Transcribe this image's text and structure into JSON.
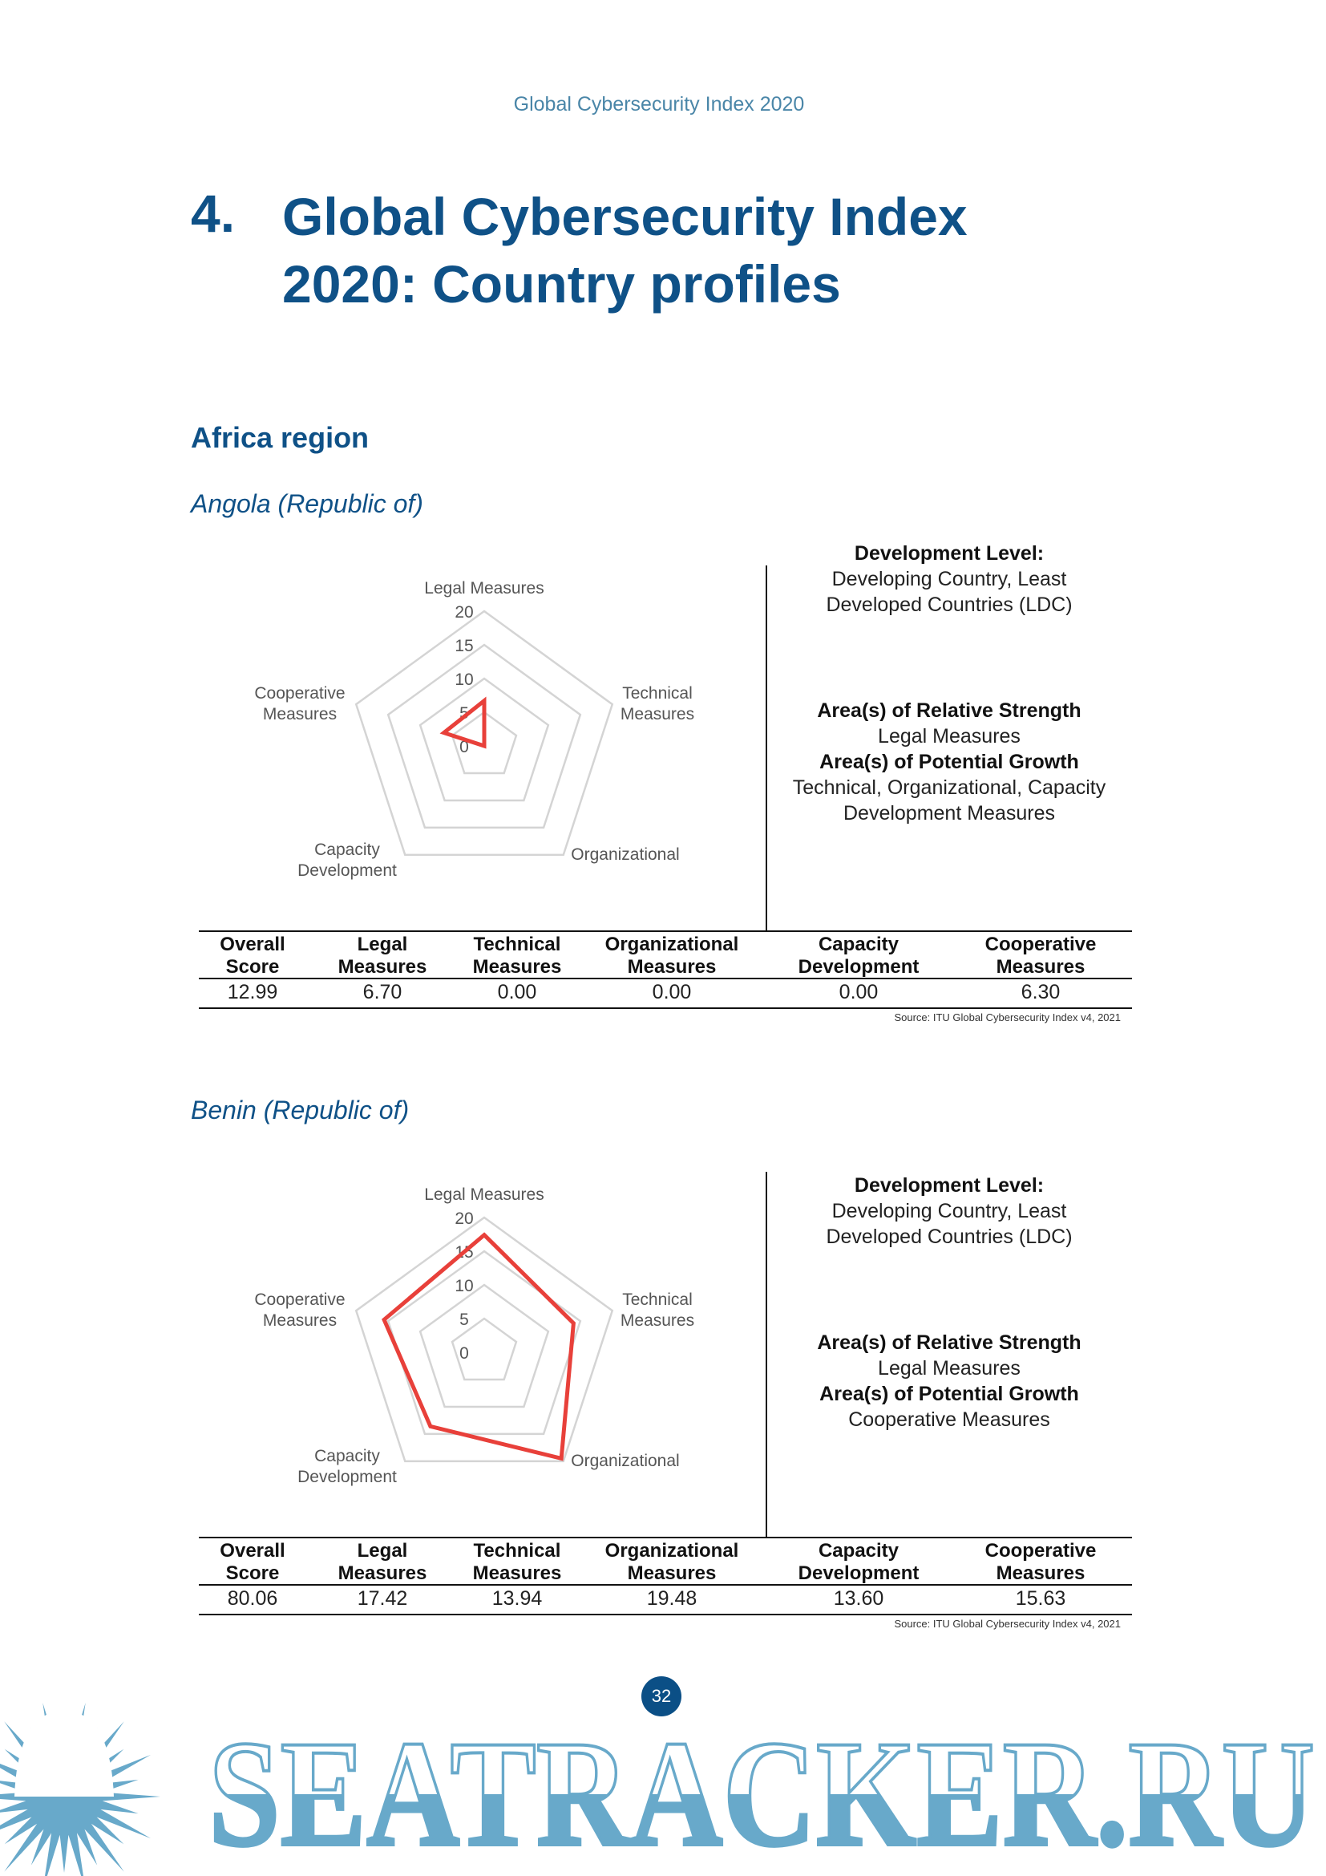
{
  "running_header": "Global Cybersecurity Index 2020",
  "chapter": {
    "number": "4.",
    "title_line1": "Global Cybersecurity Index",
    "title_line2": "2020: Country profiles"
  },
  "region": "Africa region",
  "colors": {
    "title_blue": "#0f5187",
    "series_red": "#e8403a",
    "grid_gray": "#d4d4d4",
    "watermark_blue": "#68a9ca"
  },
  "profiles": [
    {
      "country": "Angola (Republic of)",
      "chart": {
        "type": "radar",
        "axes": [
          "Legal Measures",
          "Technical|Measures",
          "Organizational",
          "Capacity|Development",
          "Cooperative|Measures"
        ],
        "ticks": [
          "0",
          "5",
          "10",
          "15",
          "20"
        ],
        "range": [
          0,
          20
        ],
        "values": [
          6.7,
          0.0,
          0.0,
          0.0,
          6.3
        ]
      },
      "panel": {
        "dev_label": "Development Level:",
        "dev_value_1": "Developing Country, Least",
        "dev_value_2": "Developed Countries (LDC)",
        "strength_label": "Area(s) of Relative Strength",
        "strength_value": "Legal Measures",
        "growth_label": "Area(s) of Potential Growth",
        "growth_value_1": "Technical, Organizational, Capacity",
        "growth_value_2": "Development Measures"
      },
      "table": {
        "headers": [
          [
            "Overall",
            "Score"
          ],
          [
            "Legal",
            "Measures"
          ],
          [
            "Technical",
            "Measures"
          ],
          [
            "Organizational",
            "Measures"
          ],
          [
            "Capacity",
            "Development"
          ],
          [
            "Cooperative",
            "Measures"
          ]
        ],
        "values": [
          "12.99",
          "6.70",
          "0.00",
          "0.00",
          "0.00",
          "6.30"
        ]
      },
      "source": "Source: ITU Global Cybersecurity Index v4, 2021"
    },
    {
      "country": "Benin (Republic of)",
      "chart": {
        "type": "radar",
        "axes": [
          "Legal Measures",
          "Technical|Measures",
          "Organizational",
          "Capacity|Development",
          "Cooperative|Measures"
        ],
        "ticks": [
          "0",
          "5",
          "10",
          "15",
          "20"
        ],
        "range": [
          0,
          20
        ],
        "values": [
          17.42,
          13.94,
          19.48,
          13.6,
          15.63
        ]
      },
      "panel": {
        "dev_label": "Development Level:",
        "dev_value_1": "Developing Country, Least",
        "dev_value_2": "Developed Countries (LDC)",
        "strength_label": "Area(s) of Relative Strength",
        "strength_value": "Legal Measures",
        "growth_label": "Area(s) of Potential Growth",
        "growth_value_1": "Cooperative Measures",
        "growth_value_2": ""
      },
      "table": {
        "headers": [
          [
            "Overall",
            "Score"
          ],
          [
            "Legal",
            "Measures"
          ],
          [
            "Technical",
            "Measures"
          ],
          [
            "Organizational",
            "Measures"
          ],
          [
            "Capacity",
            "Development"
          ],
          [
            "Cooperative",
            "Measures"
          ]
        ],
        "values": [
          "80.06",
          "17.42",
          "13.94",
          "19.48",
          "13.60",
          "15.63"
        ]
      },
      "source": "Source: ITU Global Cybersecurity Index v4, 2021"
    }
  ],
  "page_number": "32",
  "watermark": {
    "text": "SEATRACKER.RU",
    "icon": "sunburst-logo"
  }
}
